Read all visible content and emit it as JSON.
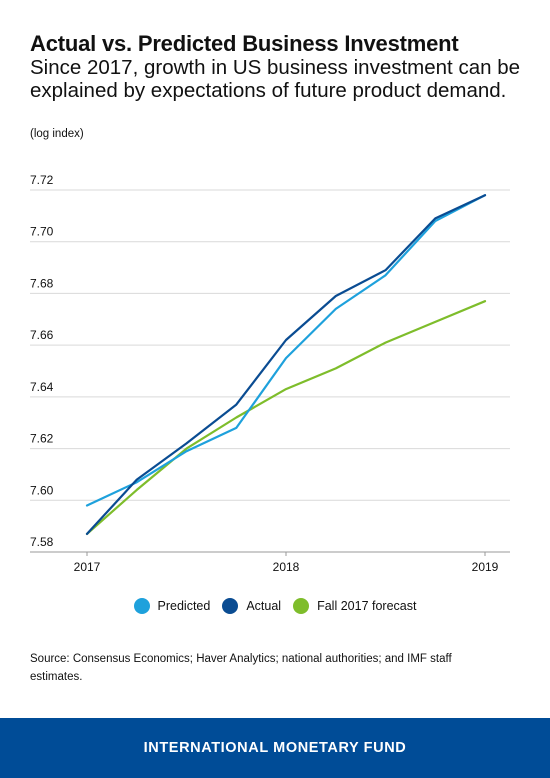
{
  "header": {
    "title": "Actual vs. Predicted Business Investment",
    "subtitle": "Since 2017, growth in US business investment can be explained by expectations of future product demand.",
    "unit": "(log index)"
  },
  "chart_data": {
    "type": "line",
    "title": "Actual vs. Predicted Business Investment",
    "ylabel": "(log index)",
    "xlim": [
      2017,
      2019
    ],
    "ylim": [
      7.58,
      7.72
    ],
    "y_ticks": [
      "7.58",
      "7.60",
      "7.62",
      "7.64",
      "7.66",
      "7.68",
      "7.70",
      "7.72"
    ],
    "x_ticks": [
      "2017",
      "2018",
      "2019"
    ],
    "grid": true,
    "legend_position": "bottom",
    "series": [
      {
        "name": "Predicted",
        "color": "#1ea1dc",
        "x": [
          2017.0,
          2017.25,
          2017.5,
          2017.75,
          2018.0,
          2018.25,
          2018.5,
          2018.75,
          2019.0
        ],
        "y": [
          7.598,
          7.607,
          7.619,
          7.628,
          7.655,
          7.674,
          7.687,
          7.708,
          7.718
        ]
      },
      {
        "name": "Actual",
        "color": "#0a4c92",
        "x": [
          2017.0,
          2017.25,
          2017.5,
          2017.75,
          2018.0,
          2018.25,
          2018.5,
          2018.75,
          2019.0
        ],
        "y": [
          7.587,
          7.608,
          7.622,
          7.637,
          7.662,
          7.679,
          7.689,
          7.709,
          7.718
        ]
      },
      {
        "name": "Fall 2017 forecast",
        "color": "#7ebd2b",
        "x": [
          2017.0,
          2017.25,
          2017.5,
          2017.75,
          2018.0,
          2018.25,
          2018.5,
          2018.75,
          2019.0
        ],
        "y": [
          7.587,
          7.604,
          7.62,
          7.632,
          7.643,
          7.651,
          7.661,
          7.669,
          7.677
        ]
      }
    ]
  },
  "source": "Source: Consensus Economics; Haver Analytics; national authorities; and IMF staff estimates.",
  "footer": {
    "org": "INTERNATIONAL MONETARY FUND",
    "color": "#004c97"
  }
}
